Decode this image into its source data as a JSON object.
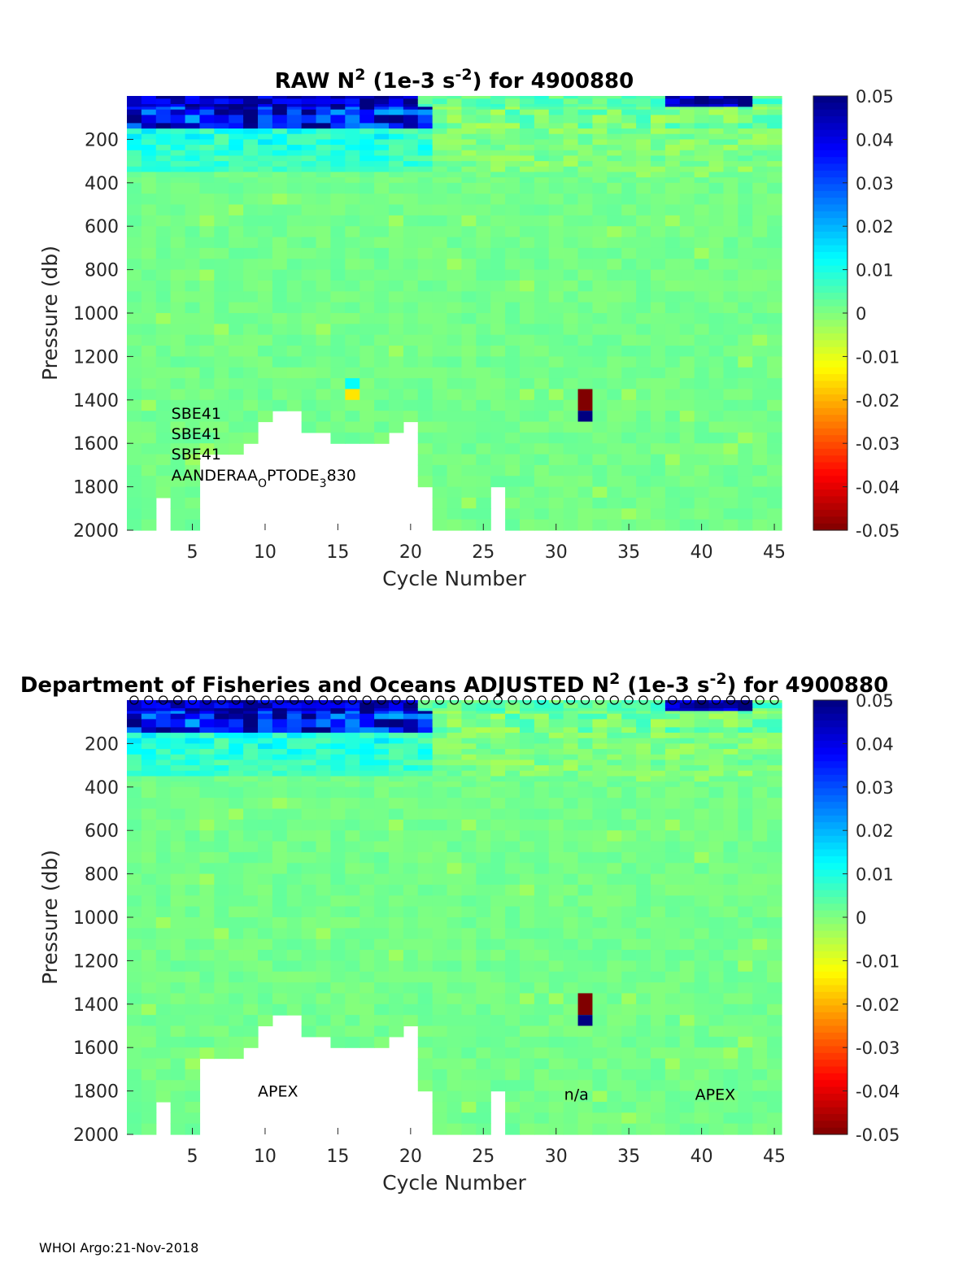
{
  "figure": {
    "footer": "WHOI Argo:21-Nov-2018"
  },
  "chart_data": [
    {
      "type": "heatmap",
      "title": "RAW N² (1e-3 s⁻²) for 4900880",
      "title_parts": {
        "pre": "RAW N",
        "sup1": "2",
        "mid": " (1e-3 s",
        "sup2": "-2",
        "post": ") for 4900880"
      },
      "xlabel": "Cycle Number",
      "ylabel": "Pressure (db)",
      "xlim": [
        1,
        45
      ],
      "ylim": [
        2000,
        0
      ],
      "xticks": [
        "5",
        "10",
        "15",
        "20",
        "25",
        "30",
        "35",
        "40",
        "45"
      ],
      "yticks": [
        "200",
        "400",
        "600",
        "800",
        "1000",
        "1200",
        "1400",
        "1600",
        "1800",
        "2000"
      ],
      "colorbar": {
        "min": -0.05,
        "max": 0.05,
        "ticks": [
          "0.05",
          "0.04",
          "0.03",
          "0.02",
          "0.01",
          "0",
          "-0.01",
          "-0.02",
          "-0.03",
          "-0.04",
          "-0.05"
        ]
      },
      "annotations": [
        {
          "text": "SBE41",
          "x": 4,
          "y": 1460
        },
        {
          "text": "SBE41",
          "x": 4,
          "y": 1555
        },
        {
          "text": "SBE41",
          "x": 4,
          "y": 1648
        },
        {
          "text": "AANDERAA",
          "sub1": "O",
          "mid": "PTODE",
          "sub2": "3",
          "post": "830",
          "x": 4,
          "y": 1745
        }
      ],
      "profile_max_pressure": [
        2000,
        2000,
        1850,
        2000,
        2000,
        1650,
        1650,
        1650,
        1600,
        1500,
        1450,
        1450,
        1550,
        1550,
        1600,
        1600,
        1600,
        1600,
        1550,
        1500,
        1800,
        2000,
        2000,
        2000,
        2000,
        1800,
        2000,
        2000,
        2000,
        2000,
        2000,
        2000,
        2000,
        2000,
        2000,
        2000,
        2000,
        2000,
        2000,
        2000,
        2000,
        2000,
        2000,
        2000,
        2000
      ],
      "anomalies": [
        {
          "cycle": 16,
          "p_top": 1300,
          "p_bot": 1350,
          "value": 0.012
        },
        {
          "cycle": 16,
          "p_top": 1350,
          "p_bot": 1400,
          "value": -0.015
        },
        {
          "cycle": 32,
          "p_top": 1350,
          "p_bot": 1450,
          "value": -0.05
        },
        {
          "cycle": 32,
          "p_top": 1450,
          "p_bot": 1500,
          "value": 0.05
        }
      ]
    },
    {
      "type": "heatmap",
      "title": "Department of Fisheries and Oceans  ADJUSTED N² (1e-3 s⁻²) for 4900880",
      "title_parts": {
        "pre": "Department of Fisheries and Oceans  ADJUSTED N",
        "sup1": "2",
        "mid": " (1e-3 s",
        "sup2": "-2",
        "post": ") for 4900880"
      },
      "xlabel": "Cycle Number",
      "ylabel": "Pressure (db)",
      "xlim": [
        1,
        45
      ],
      "ylim": [
        2000,
        0
      ],
      "xticks": [
        "5",
        "10",
        "15",
        "20",
        "25",
        "30",
        "35",
        "40",
        "45"
      ],
      "yticks": [
        "200",
        "400",
        "600",
        "800",
        "1000",
        "1200",
        "1400",
        "1600",
        "1800",
        "2000"
      ],
      "colorbar": {
        "min": -0.05,
        "max": 0.05,
        "ticks": [
          "0.05",
          "0.04",
          "0.03",
          "0.02",
          "0.01",
          "0",
          "-0.01",
          "-0.02",
          "-0.03",
          "-0.04",
          "-0.05"
        ]
      },
      "top_markers": "o",
      "annotations": [
        {
          "text": "APEX",
          "x": 10,
          "y": 1800,
          "size": "large"
        },
        {
          "text": "n/a",
          "x": 31,
          "y": 1815
        },
        {
          "text": "APEX",
          "x": 40,
          "y": 1815
        }
      ],
      "profile_max_pressure": [
        2000,
        2000,
        1850,
        2000,
        2000,
        1650,
        1650,
        1650,
        1600,
        1500,
        1450,
        1450,
        1550,
        1550,
        1600,
        1600,
        1600,
        1600,
        1550,
        1500,
        1800,
        2000,
        2000,
        2000,
        2000,
        1800,
        2000,
        2000,
        2000,
        2000,
        2000,
        2000,
        2000,
        2000,
        2000,
        2000,
        2000,
        2000,
        2000,
        2000,
        2000,
        2000,
        2000,
        2000,
        2000
      ],
      "anomalies": [
        {
          "cycle": 32,
          "p_top": 1350,
          "p_bot": 1450,
          "value": -0.05
        },
        {
          "cycle": 32,
          "p_top": 1450,
          "p_bot": 1500,
          "value": 0.05
        }
      ]
    }
  ]
}
